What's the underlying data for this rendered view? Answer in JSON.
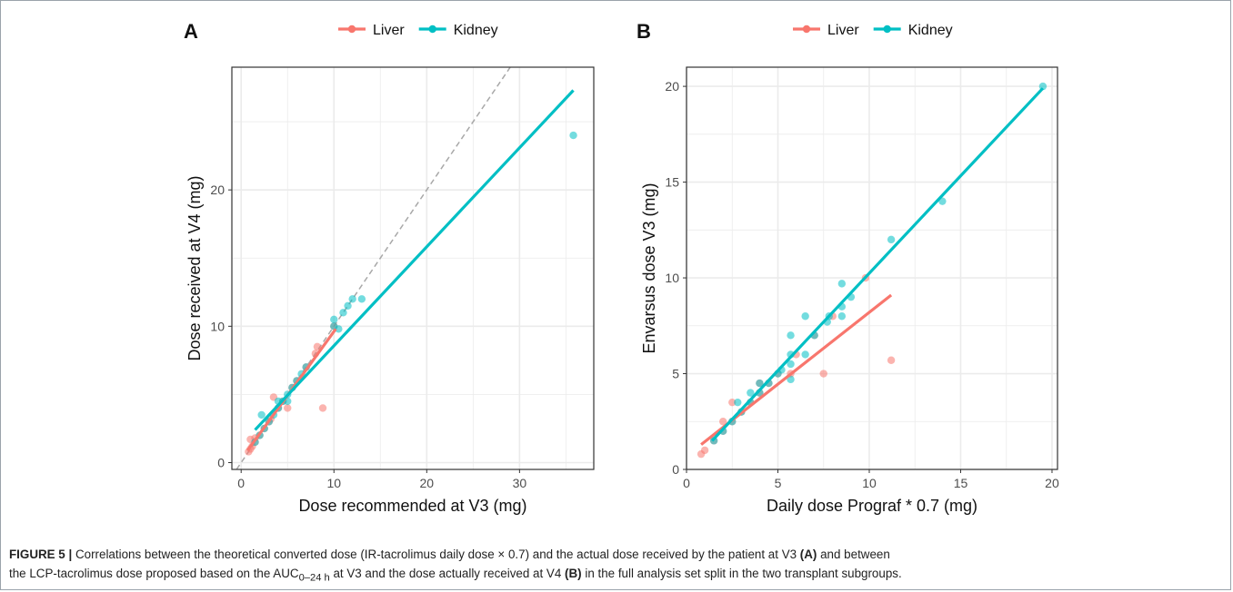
{
  "colors": {
    "liver": "#F8766D",
    "kidney": "#00BFC4",
    "grid": "#EBEBEB",
    "identity_line": "#A8A8A8"
  },
  "caption": {
    "label": "FIGURE 5 |",
    "line1_a": "Correlations between the theoretical converted dose (IR-tacrolimus daily dose × 0.7) and the actual dose received by the patient at V3 ",
    "line1_bold": "(A)",
    "line1_b": " and between",
    "line2_a": "the LCP-tacrolimus dose proposed based on the AUC",
    "line2_sub": "0–24 h",
    "line2_b": " at V3 and the dose actually received at V4 ",
    "line2_bold": "(B)",
    "line2_c": " in the full analysis set split in the two transplant subgroups."
  },
  "chart_data": [
    {
      "panel": "A",
      "type": "scatter",
      "xlabel": "Dose recommended at V3 (mg)",
      "ylabel": "Dose received at V4 (mg)",
      "xlim": [
        -1,
        38
      ],
      "ylim": [
        -0.5,
        29
      ],
      "xticks": [
        0,
        10,
        20,
        30
      ],
      "yticks": [
        0,
        10,
        20
      ],
      "grid": true,
      "legend_position": "top",
      "legend": [
        "Liver",
        "Kidney"
      ],
      "identity_line": true,
      "series": [
        {
          "name": "Liver",
          "points": [
            [
              0.8,
              0.8
            ],
            [
              1.0,
              1.0
            ],
            [
              1.0,
              1.7
            ],
            [
              1.2,
              1.2
            ],
            [
              1.5,
              1.5
            ],
            [
              1.5,
              1.8
            ],
            [
              2.0,
              2.0
            ],
            [
              2.5,
              2.5
            ],
            [
              3.0,
              3.0
            ],
            [
              3.2,
              3.2
            ],
            [
              3.5,
              4.8
            ],
            [
              4.0,
              4.0
            ],
            [
              4.5,
              4.5
            ],
            [
              5.0,
              4.0
            ],
            [
              5.5,
              5.5
            ],
            [
              6.0,
              6.0
            ],
            [
              7.0,
              7.0
            ],
            [
              8.0,
              8.0
            ],
            [
              8.2,
              8.5
            ],
            [
              8.8,
              4.0
            ],
            [
              10.0,
              10.0
            ]
          ],
          "fit": [
            [
              0.7,
              0.9
            ],
            [
              10.2,
              9.8
            ]
          ]
        },
        {
          "name": "Kidney",
          "points": [
            [
              1.5,
              1.5
            ],
            [
              2.0,
              2.0
            ],
            [
              2.2,
              3.5
            ],
            [
              2.5,
              2.5
            ],
            [
              3.0,
              3.0
            ],
            [
              3.5,
              3.5
            ],
            [
              4.0,
              4.0
            ],
            [
              4.0,
              4.5
            ],
            [
              4.5,
              4.5
            ],
            [
              5.0,
              5.0
            ],
            [
              5.0,
              4.5
            ],
            [
              5.5,
              5.5
            ],
            [
              6.0,
              6.0
            ],
            [
              6.5,
              6.5
            ],
            [
              7.0,
              7.0
            ],
            [
              10.0,
              10.0
            ],
            [
              10.0,
              10.5
            ],
            [
              10.5,
              9.8
            ],
            [
              11.0,
              11.0
            ],
            [
              11.5,
              11.5
            ],
            [
              12.0,
              12.0
            ],
            [
              13.0,
              12.0
            ],
            [
              35.8,
              24.0
            ]
          ],
          "fit": [
            [
              1.5,
              2.4
            ],
            [
              35.8,
              27.3
            ]
          ]
        }
      ]
    },
    {
      "panel": "B",
      "type": "scatter",
      "xlabel": "Daily dose Prograf * 0.7 (mg)",
      "ylabel": "Envarsus dose V3 (mg)",
      "xlim": [
        0,
        20.3
      ],
      "ylim": [
        0,
        21
      ],
      "xticks": [
        0,
        5,
        10,
        15,
        20
      ],
      "yticks": [
        0,
        5,
        10,
        15,
        20
      ],
      "grid": true,
      "legend_position": "top",
      "legend": [
        "Liver",
        "Kidney"
      ],
      "series": [
        {
          "name": "Liver",
          "points": [
            [
              0.8,
              0.8
            ],
            [
              1.0,
              1.0
            ],
            [
              1.5,
              1.5
            ],
            [
              2.0,
              2.0
            ],
            [
              2.0,
              2.5
            ],
            [
              2.5,
              2.5
            ],
            [
              2.5,
              3.5
            ],
            [
              3.0,
              3.0
            ],
            [
              3.5,
              3.5
            ],
            [
              4.0,
              4.0
            ],
            [
              4.0,
              4.5
            ],
            [
              4.5,
              4.5
            ],
            [
              5.0,
              5.0
            ],
            [
              5.7,
              5.0
            ],
            [
              6.0,
              6.0
            ],
            [
              7.0,
              7.0
            ],
            [
              7.5,
              5.0
            ],
            [
              8.0,
              8.0
            ],
            [
              9.8,
              10.0
            ],
            [
              11.2,
              5.7
            ]
          ],
          "fit": [
            [
              0.8,
              1.3
            ],
            [
              11.2,
              9.1
            ]
          ]
        },
        {
          "name": "Kidney",
          "points": [
            [
              1.5,
              1.5
            ],
            [
              2.0,
              2.0
            ],
            [
              2.5,
              2.5
            ],
            [
              2.8,
              3.5
            ],
            [
              3.0,
              3.0
            ],
            [
              3.5,
              3.5
            ],
            [
              3.5,
              4.0
            ],
            [
              4.0,
              4.0
            ],
            [
              4.0,
              4.5
            ],
            [
              4.5,
              4.5
            ],
            [
              5.0,
              5.0
            ],
            [
              5.2,
              5.2
            ],
            [
              5.7,
              4.7
            ],
            [
              5.7,
              5.5
            ],
            [
              5.7,
              6.0
            ],
            [
              5.7,
              7.0
            ],
            [
              6.5,
              6.0
            ],
            [
              6.5,
              8.0
            ],
            [
              7.0,
              7.0
            ],
            [
              7.7,
              7.7
            ],
            [
              7.8,
              8.0
            ],
            [
              8.5,
              8.0
            ],
            [
              8.5,
              9.7
            ],
            [
              8.5,
              8.5
            ],
            [
              9.0,
              9.0
            ],
            [
              11.2,
              12.0
            ],
            [
              14.0,
              14.0
            ],
            [
              19.5,
              20.0
            ]
          ],
          "fit": [
            [
              1.4,
              1.5
            ],
            [
              19.5,
              19.9
            ]
          ]
        }
      ]
    }
  ]
}
